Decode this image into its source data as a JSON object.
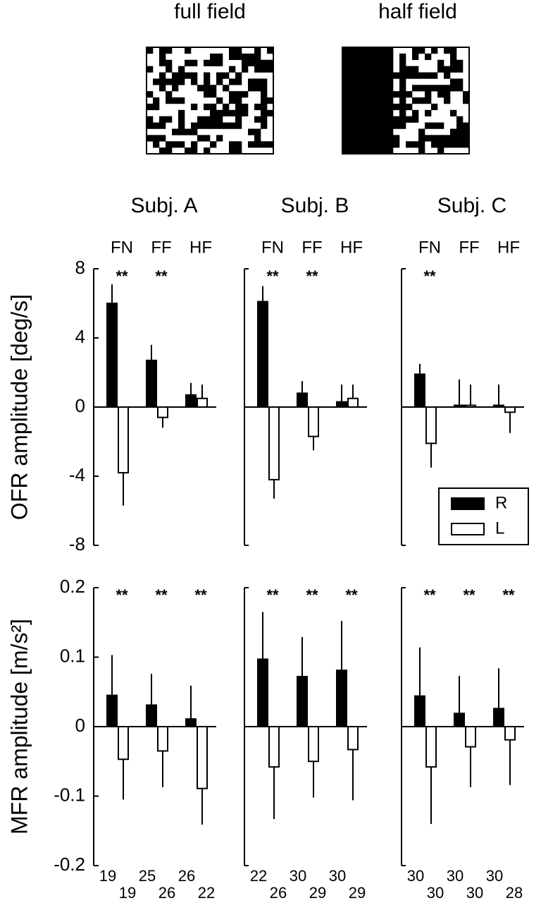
{
  "stimuli": [
    "full field",
    "half field"
  ],
  "chart_data": [
    {
      "type": "bar",
      "title": "Subj. A",
      "categories": [
        "FN",
        "FF",
        "HF"
      ],
      "ylabel": "OFR amplitude  [deg/s]",
      "ylim": [
        -8,
        8
      ],
      "yticks": [
        -8,
        -4,
        0,
        4,
        8
      ],
      "series": [
        {
          "color": "#000000",
          "values": [
            6.0,
            2.7,
            0.7
          ],
          "errors": [
            1.1,
            0.9,
            0.7
          ]
        },
        {
          "color": "#ffffff",
          "values": [
            -3.8,
            -0.6,
            0.5
          ],
          "errors": [
            1.9,
            0.6,
            0.8
          ]
        }
      ],
      "significance": [
        "**",
        "**",
        null
      ]
    },
    {
      "type": "bar",
      "title": "Subj. B",
      "categories": [
        "FN",
        "FF",
        "HF"
      ],
      "ylim": [
        -8,
        8
      ],
      "series": [
        {
          "color": "#000000",
          "values": [
            6.1,
            0.8,
            0.3
          ],
          "errors": [
            0.9,
            0.7,
            1.0
          ]
        },
        {
          "color": "#ffffff",
          "values": [
            -4.2,
            -1.7,
            0.5
          ],
          "errors": [
            1.1,
            0.8,
            0.8
          ]
        }
      ],
      "significance": [
        "**",
        "**",
        null
      ]
    },
    {
      "type": "bar",
      "title": "Subj. C",
      "categories": [
        "FN",
        "FF",
        "HF"
      ],
      "ylim": [
        -8,
        8
      ],
      "legend": "lower right",
      "series": [
        {
          "name": "R",
          "color": "#000000",
          "values": [
            1.9,
            0.1,
            0.1
          ],
          "errors": [
            0.6,
            1.5,
            1.2
          ]
        },
        {
          "name": "L",
          "color": "#ffffff",
          "values": [
            -2.1,
            0.1,
            -0.3
          ],
          "errors": [
            1.4,
            1.2,
            1.2
          ]
        }
      ],
      "significance": [
        "**",
        null,
        null
      ]
    },
    {
      "type": "bar",
      "categories": [
        null,
        null,
        null
      ],
      "ylabel": "MFR amplitude [m/s²]",
      "ylim": [
        -0.2,
        0.2
      ],
      "yticks": [
        -0.2,
        -0.1,
        0,
        0.1,
        0.2
      ],
      "series": [
        {
          "color": "#000000",
          "values": [
            0.045,
            0.031,
            0.011
          ],
          "errors": [
            0.058,
            0.045,
            0.048
          ],
          "n": [
            19,
            25,
            26
          ]
        },
        {
          "color": "#ffffff",
          "values": [
            -0.047,
            -0.035,
            -0.089
          ],
          "errors": [
            0.058,
            0.052,
            0.052
          ],
          "n": [
            19,
            26,
            22
          ]
        }
      ],
      "significance": [
        "**",
        "**",
        "**"
      ]
    },
    {
      "type": "bar",
      "categories": [
        null,
        null,
        null
      ],
      "ylim": [
        -0.2,
        0.2
      ],
      "series": [
        {
          "color": "#000000",
          "values": [
            0.097,
            0.072,
            0.081
          ],
          "errors": [
            0.068,
            0.057,
            0.071
          ],
          "n": [
            22,
            30,
            30
          ]
        },
        {
          "color": "#ffffff",
          "values": [
            -0.058,
            -0.05,
            -0.033
          ],
          "errors": [
            0.075,
            0.052,
            0.073
          ],
          "n": [
            26,
            29,
            29
          ]
        }
      ],
      "significance": [
        "**",
        "**",
        "**"
      ]
    },
    {
      "type": "bar",
      "categories": [
        null,
        null,
        null
      ],
      "ylim": [
        -0.2,
        0.2
      ],
      "series": [
        {
          "color": "#000000",
          "values": [
            0.044,
            0.019,
            0.026
          ],
          "errors": [
            0.07,
            0.054,
            0.058
          ],
          "n": [
            30,
            30,
            30
          ]
        },
        {
          "color": "#ffffff",
          "values": [
            -0.058,
            -0.029,
            -0.019
          ],
          "errors": [
            0.082,
            0.058,
            0.065
          ],
          "n": [
            30,
            30,
            28
          ]
        }
      ],
      "significance": [
        "**",
        "**",
        "**"
      ]
    }
  ]
}
